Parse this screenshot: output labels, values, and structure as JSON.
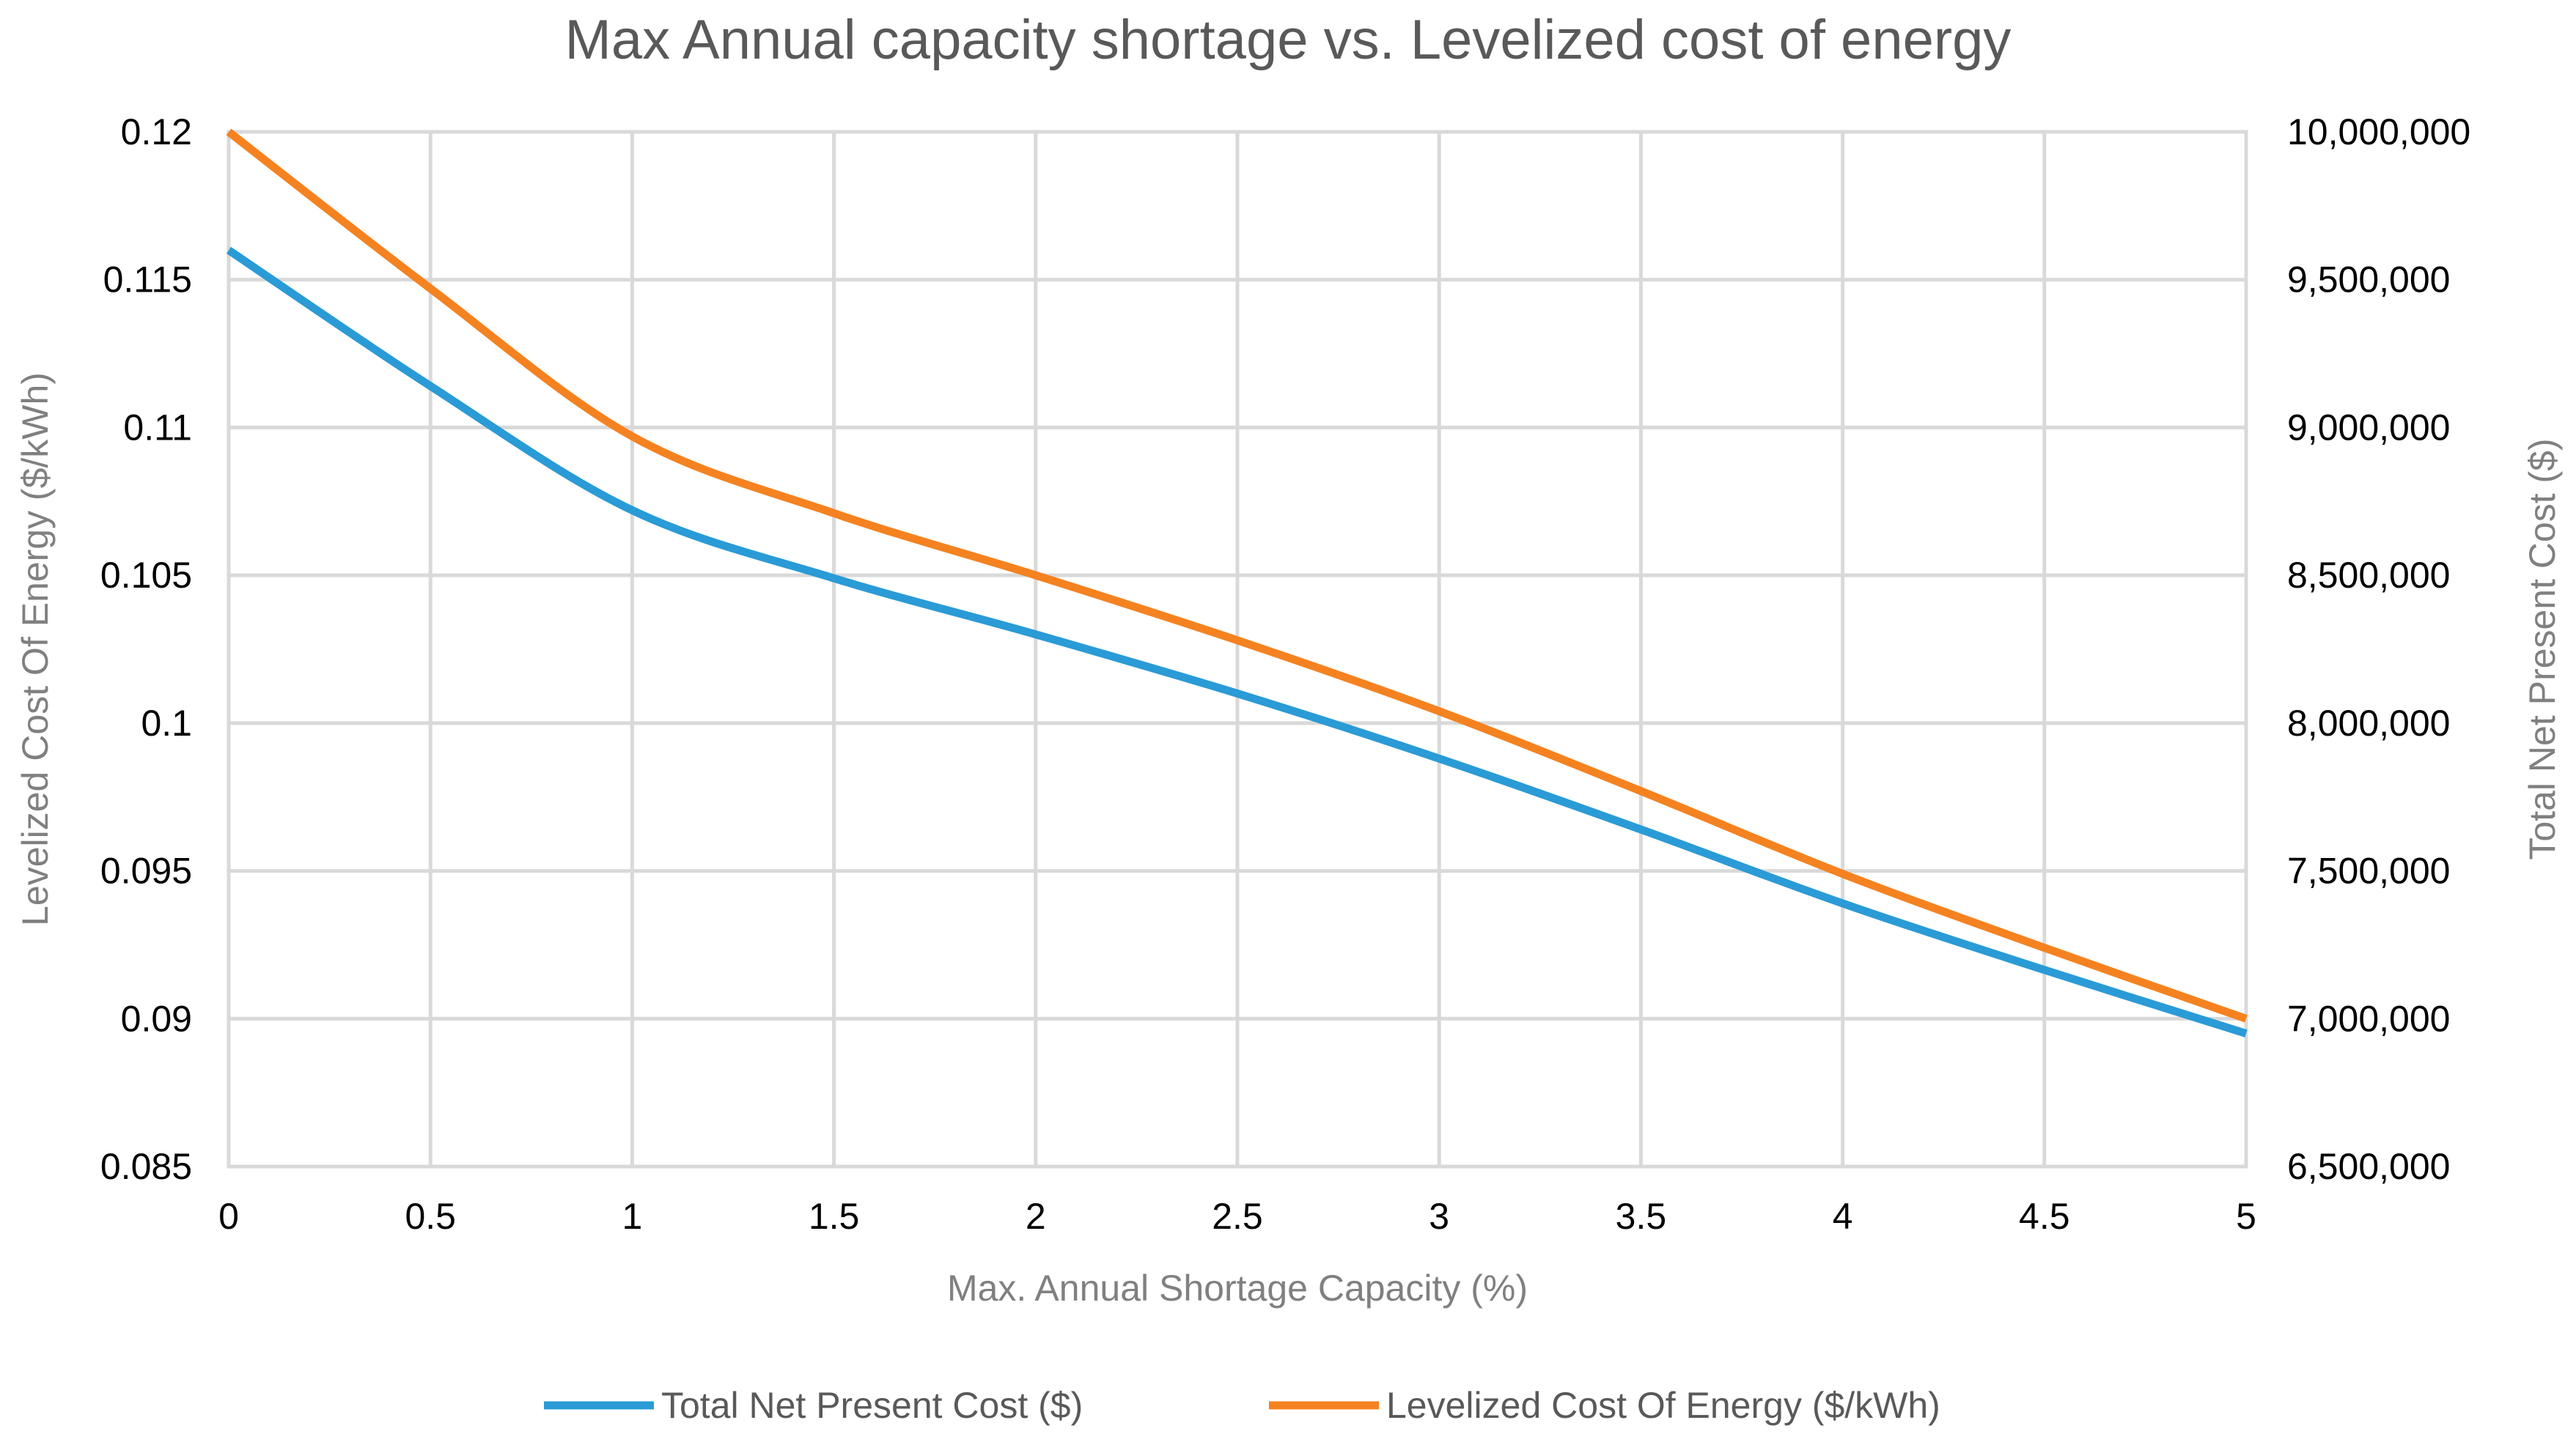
{
  "chart_data": {
    "type": "line",
    "title": "Max Annual capacity shortage vs. Levelized cost of energy",
    "xlabel": "Max. Annual Shortage Capacity (%)",
    "ylabel_left": "Levelized Cost Of Energy ($/kWh)",
    "ylabel_right": "Total Net Present Cost ($)",
    "xlim": [
      0,
      5
    ],
    "ylim_left": [
      0.085,
      0.12
    ],
    "ylim_right": [
      6500000,
      10000000
    ],
    "x_ticks": [
      "0",
      "0.5",
      "1",
      "1.5",
      "2",
      "2.5",
      "3",
      "3.5",
      "4",
      "4.5",
      "5"
    ],
    "y_left_ticks": [
      "0.12",
      "0.115",
      "0.11",
      "0.105",
      "0.1",
      "0.095",
      "0.09",
      "0.085"
    ],
    "y_right_ticks": [
      "10,000,000",
      "9,500,000",
      "9,000,000",
      "8,500,000",
      "8,000,000",
      "7,500,000",
      "7,000,000",
      "6,500,000"
    ],
    "grid": true,
    "legend_position": "bottom",
    "series": [
      {
        "name": "Total Net Present Cost ($)",
        "axis": "right",
        "color": "#2a9bd6",
        "x": [
          0,
          0.5,
          1,
          1.5,
          2,
          2.5,
          3,
          3.5,
          4,
          4.5,
          5
        ],
        "values": [
          9600000,
          9140000,
          8720000,
          8490000,
          8300000,
          8100000,
          7880000,
          7640000,
          7390000,
          7165000,
          6950000
        ]
      },
      {
        "name": "Levelized Cost Of Energy ($/kWh)",
        "axis": "left",
        "color": "#f58220",
        "x": [
          0,
          0.5,
          1,
          1.5,
          2,
          2.5,
          3,
          3.5,
          4,
          4.5,
          5
        ],
        "values": [
          0.12,
          0.1147,
          0.1097,
          0.1071,
          0.105,
          0.1028,
          0.1004,
          0.0977,
          0.0949,
          0.0924,
          0.09
        ]
      }
    ]
  }
}
